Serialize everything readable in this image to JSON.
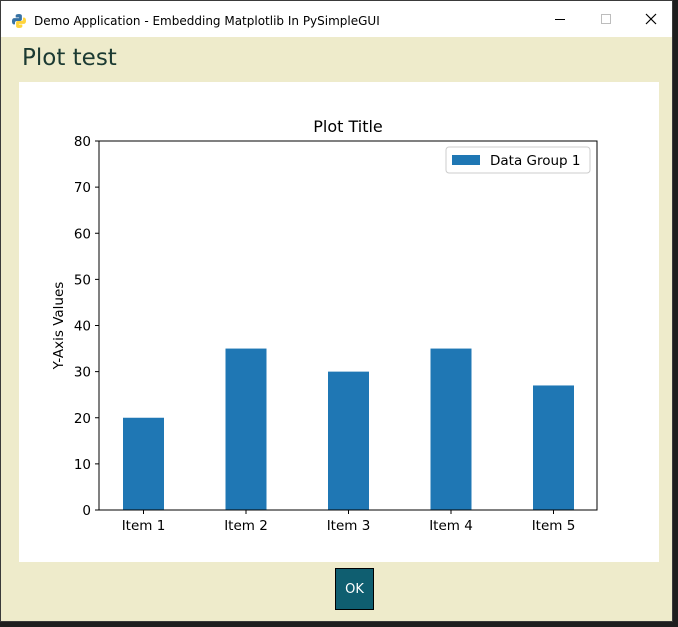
{
  "window": {
    "title": "Demo Application - Embedding Matplotlib In PySimpleGUI",
    "icon": "python-icon",
    "controls": [
      "minimize-icon",
      "maximize-icon",
      "close-icon"
    ]
  },
  "heading": "Plot test",
  "ok_button": "OK",
  "colors": {
    "background": "#eeebcb",
    "heading_text": "#1b3a32",
    "button_bg": "#0f5e70",
    "bar": "#1f77b4"
  },
  "chart_data": {
    "type": "bar",
    "title": "Plot Title",
    "xlabel": "",
    "ylabel": "Y-Axis Values",
    "categories": [
      "Item 1",
      "Item 2",
      "Item 3",
      "Item 4",
      "Item 5"
    ],
    "series": [
      {
        "name": "Data Group 1",
        "values": [
          20,
          35,
          30,
          35,
          27
        ],
        "color": "#1f77b4"
      }
    ],
    "ylim": [
      0,
      80
    ],
    "yticks": [
      0,
      10,
      20,
      30,
      40,
      50,
      60,
      70,
      80
    ],
    "grid": false,
    "legend_position": "top-right"
  }
}
